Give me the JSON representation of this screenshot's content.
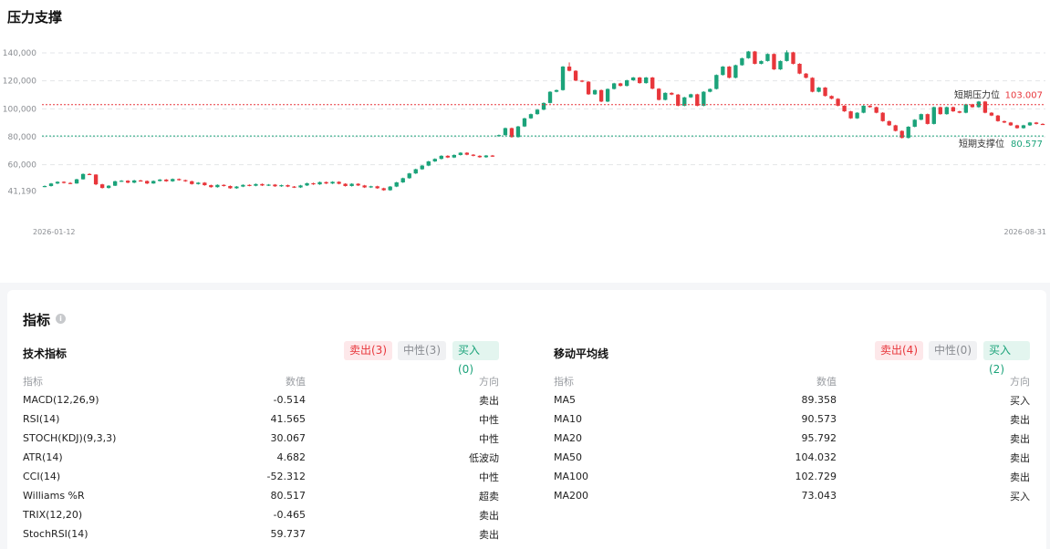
{
  "chart_title": "压力支撑",
  "chart_data": {
    "type": "candlestick",
    "yticks": [
      "140,000",
      "120,000",
      "100,000",
      "80,000",
      "60,000",
      "41,190"
    ],
    "ylim": [
      30000,
      142000
    ],
    "x_start_label": "2026-01-12",
    "x_end_label": "2026-08-31",
    "resistance": {
      "label": "短期压力位",
      "value": 103007,
      "display": "103.007",
      "color": "#e8363b"
    },
    "support": {
      "label": "短期支撑位",
      "value": 80577,
      "display": "80.577",
      "color": "#1ba37a"
    },
    "up_color": "#1ba37a",
    "down_color": "#e8363b",
    "candles": [
      [
        44200,
        44800,
        44000,
        45200
      ],
      [
        44800,
        46600,
        44400,
        47000
      ],
      [
        46600,
        47800,
        46200,
        48200
      ],
      [
        47800,
        47000,
        46600,
        48200
      ],
      [
        47000,
        46600,
        46200,
        47600
      ],
      [
        46600,
        49600,
        46400,
        50000
      ],
      [
        49600,
        53400,
        49400,
        53800
      ],
      [
        53400,
        53000,
        52600,
        54000
      ],
      [
        53000,
        46000,
        45400,
        53200
      ],
      [
        46000,
        43400,
        43000,
        46400
      ],
      [
        43400,
        45000,
        43000,
        45400
      ],
      [
        45000,
        48200,
        44800,
        48600
      ],
      [
        48200,
        48600,
        47800,
        49000
      ],
      [
        48600,
        47200,
        46800,
        49000
      ],
      [
        47200,
        48800,
        46800,
        49200
      ],
      [
        48800,
        48400,
        48000,
        49200
      ],
      [
        48400,
        46600,
        46200,
        48800
      ],
      [
        46600,
        48400,
        46400,
        48800
      ],
      [
        48400,
        49400,
        48000,
        49800
      ],
      [
        49400,
        48200,
        47800,
        49800
      ],
      [
        48200,
        49800,
        47800,
        50200
      ],
      [
        49800,
        49000,
        48600,
        50200
      ],
      [
        49000,
        48200,
        47800,
        49400
      ],
      [
        48200,
        46200,
        45800,
        48600
      ],
      [
        46200,
        47200,
        45800,
        47600
      ],
      [
        47200,
        45400,
        45000,
        47600
      ],
      [
        45400,
        44000,
        43600,
        45800
      ],
      [
        44000,
        45600,
        43600,
        46000
      ],
      [
        45600,
        44800,
        44400,
        46000
      ],
      [
        44800,
        43200,
        42800,
        45200
      ],
      [
        43200,
        44400,
        42800,
        44800
      ],
      [
        44400,
        45600,
        44000,
        46000
      ],
      [
        45600,
        45000,
        44600,
        46000
      ],
      [
        45000,
        46200,
        44600,
        46600
      ],
      [
        46200,
        45200,
        44800,
        46600
      ],
      [
        45200,
        45800,
        44800,
        46200
      ],
      [
        45800,
        44600,
        44200,
        46200
      ],
      [
        44600,
        45400,
        44200,
        45800
      ],
      [
        45400,
        44400,
        44000,
        45800
      ],
      [
        44400,
        43800,
        43400,
        44800
      ],
      [
        43800,
        45200,
        43400,
        45600
      ],
      [
        45200,
        46800,
        44800,
        47200
      ],
      [
        46800,
        46000,
        45600,
        47200
      ],
      [
        46000,
        47600,
        45600,
        48000
      ],
      [
        47600,
        46600,
        46200,
        48000
      ],
      [
        46600,
        47800,
        46200,
        48200
      ],
      [
        47800,
        46400,
        46000,
        48200
      ],
      [
        46400,
        44800,
        44400,
        46800
      ],
      [
        44800,
        46400,
        44400,
        46800
      ],
      [
        46400,
        45200,
        44800,
        46800
      ],
      [
        45200,
        43800,
        43400,
        45600
      ],
      [
        43800,
        44600,
        43400,
        45000
      ],
      [
        44600,
        43200,
        42800,
        45000
      ],
      [
        43200,
        41800,
        41400,
        43600
      ],
      [
        41800,
        44400,
        41400,
        44800
      ],
      [
        44400,
        47400,
        44000,
        47800
      ],
      [
        47400,
        50400,
        47000,
        50800
      ],
      [
        50400,
        53800,
        50000,
        54200
      ],
      [
        53800,
        56800,
        53400,
        57200
      ],
      [
        56800,
        59400,
        56400,
        59800
      ],
      [
        59400,
        62400,
        59000,
        62800
      ],
      [
        62400,
        64200,
        62000,
        64600
      ],
      [
        64200,
        66400,
        63800,
        66800
      ],
      [
        66400,
        65200,
        64800,
        66800
      ],
      [
        65200,
        67000,
        64800,
        67400
      ],
      [
        67000,
        68600,
        66600,
        69000
      ],
      [
        68600,
        67200,
        66800,
        69000
      ],
      [
        67200,
        66400,
        66000,
        67600
      ],
      [
        66400,
        65400,
        65000,
        66800
      ],
      [
        65400,
        66600,
        65000,
        67000
      ],
      [
        66600,
        66000,
        65600,
        67000
      ],
      [
        80800,
        81200,
        80200,
        81600
      ],
      [
        81200,
        86200,
        80800,
        86600
      ],
      [
        86200,
        79800,
        79400,
        86600
      ],
      [
        79800,
        87400,
        79400,
        87800
      ],
      [
        87400,
        93200,
        87000,
        93600
      ],
      [
        93200,
        96200,
        92800,
        96600
      ],
      [
        96200,
        99400,
        95800,
        99800
      ],
      [
        99400,
        104200,
        99000,
        104600
      ],
      [
        104200,
        112200,
        103800,
        112600
      ],
      [
        112200,
        113400,
        111800,
        113800
      ],
      [
        113400,
        130200,
        113000,
        130600
      ],
      [
        130200,
        127200,
        126800,
        133200
      ],
      [
        127200,
        120200,
        119800,
        127600
      ],
      [
        120200,
        119400,
        119000,
        120600
      ],
      [
        119400,
        110400,
        110000,
        119800
      ],
      [
        110400,
        113400,
        110000,
        113800
      ],
      [
        113400,
        105200,
        104800,
        113800
      ],
      [
        105200,
        114200,
        104800,
        114600
      ],
      [
        114200,
        118200,
        113800,
        118600
      ],
      [
        118200,
        116400,
        116000,
        118600
      ],
      [
        116400,
        120400,
        116000,
        120800
      ],
      [
        120400,
        122400,
        120000,
        122800
      ],
      [
        122400,
        118400,
        118000,
        122800
      ],
      [
        118400,
        122400,
        118000,
        122800
      ],
      [
        122400,
        114400,
        114000,
        122800
      ],
      [
        114400,
        106400,
        106000,
        114800
      ],
      [
        106400,
        111400,
        106000,
        111800
      ],
      [
        111400,
        110200,
        109800,
        111800
      ],
      [
        110200,
        102200,
        101800,
        110600
      ],
      [
        102200,
        108200,
        101800,
        108600
      ],
      [
        108200,
        110400,
        107800,
        110800
      ],
      [
        110400,
        102200,
        101800,
        110800
      ],
      [
        102200,
        112200,
        101800,
        112600
      ],
      [
        112200,
        114200,
        111800,
        114600
      ],
      [
        114200,
        124200,
        113800,
        124600
      ],
      [
        124200,
        130200,
        123800,
        130600
      ],
      [
        130200,
        122200,
        121800,
        130600
      ],
      [
        122200,
        131200,
        121800,
        131600
      ],
      [
        131200,
        136200,
        130800,
        136600
      ],
      [
        136200,
        141000,
        135800,
        141400
      ],
      [
        141000,
        132200,
        131800,
        141400
      ],
      [
        132200,
        134200,
        131800,
        134600
      ],
      [
        134200,
        139200,
        133800,
        139600
      ],
      [
        139200,
        128200,
        127800,
        139600
      ],
      [
        128200,
        134200,
        127800,
        134600
      ],
      [
        134200,
        140400,
        133800,
        141800
      ],
      [
        140400,
        132200,
        131800,
        140800
      ],
      [
        132200,
        125200,
        124800,
        132600
      ],
      [
        125200,
        122200,
        121800,
        125600
      ],
      [
        122200,
        112200,
        111800,
        122600
      ],
      [
        112200,
        115200,
        111800,
        115600
      ],
      [
        115200,
        109200,
        108800,
        115600
      ],
      [
        109200,
        107200,
        106800,
        109600
      ],
      [
        107200,
        102200,
        101800,
        107600
      ],
      [
        102200,
        98200,
        97800,
        102600
      ],
      [
        98200,
        93200,
        92800,
        98600
      ],
      [
        93200,
        97200,
        92800,
        97600
      ],
      [
        97200,
        102200,
        96800,
        102600
      ],
      [
        102200,
        101200,
        100800,
        102600
      ],
      [
        101200,
        97200,
        96800,
        101600
      ],
      [
        97200,
        91200,
        90800,
        97600
      ],
      [
        91200,
        88200,
        87800,
        91600
      ],
      [
        88200,
        84200,
        83800,
        88600
      ],
      [
        84200,
        79200,
        78800,
        84600
      ],
      [
        79200,
        87200,
        78800,
        87600
      ],
      [
        87200,
        92200,
        86800,
        92600
      ],
      [
        92200,
        96200,
        91800,
        96600
      ],
      [
        96200,
        89200,
        88800,
        96600
      ],
      [
        89200,
        101200,
        88800,
        101600
      ],
      [
        101200,
        96200,
        95800,
        101600
      ],
      [
        96200,
        101200,
        95800,
        101600
      ],
      [
        101200,
        98200,
        97800,
        101600
      ],
      [
        98200,
        97200,
        96800,
        98600
      ],
      [
        97200,
        103200,
        96800,
        103600
      ],
      [
        103200,
        101200,
        100800,
        103600
      ],
      [
        101200,
        105200,
        100800,
        105600
      ],
      [
        105200,
        97200,
        96800,
        105600
      ],
      [
        97200,
        95200,
        94800,
        97600
      ],
      [
        95200,
        91200,
        90800,
        95600
      ],
      [
        91200,
        90200,
        89800,
        91600
      ],
      [
        90200,
        88200,
        87800,
        90600
      ],
      [
        88200,
        86200,
        85800,
        88600
      ],
      [
        86200,
        88200,
        85800,
        88600
      ],
      [
        88200,
        90200,
        87800,
        90600
      ],
      [
        90200,
        89200,
        88800,
        90600
      ],
      [
        89200,
        88900,
        88500,
        89600
      ]
    ]
  },
  "card": {
    "title": "指标",
    "info_icon": "info-icon"
  },
  "tech": {
    "title": "技术指标",
    "sell": "卖出(3)",
    "neutral": "中性(3)",
    "buy": "买入(0)",
    "headers": {
      "name": "指标",
      "value": "数值",
      "dir": "方向"
    },
    "rows": [
      {
        "name": "MACD(12,26,9)",
        "value": "-0.514",
        "dir": "卖出",
        "type": "sell"
      },
      {
        "name": "RSI(14)",
        "value": "41.565",
        "dir": "中性",
        "type": "neutral"
      },
      {
        "name": "STOCH(KDJ)(9,3,3)",
        "value": "30.067",
        "dir": "中性",
        "type": "neutral"
      },
      {
        "name": "ATR(14)",
        "value": "4.682",
        "dir": "低波动",
        "type": "neutral"
      },
      {
        "name": "CCI(14)",
        "value": "-52.312",
        "dir": "中性",
        "type": "neutral"
      },
      {
        "name": "Williams %R",
        "value": "80.517",
        "dir": "超卖",
        "type": "neutral"
      },
      {
        "name": "TRIX(12,20)",
        "value": "-0.465",
        "dir": "卖出",
        "type": "sell"
      },
      {
        "name": "StochRSI(14)",
        "value": "59.737",
        "dir": "卖出",
        "type": "sell"
      }
    ]
  },
  "ma": {
    "title": "移动平均线",
    "sell": "卖出(4)",
    "neutral": "中性(0)",
    "buy": "买入(2)",
    "headers": {
      "name": "指标",
      "value": "数值",
      "dir": "方向"
    },
    "rows": [
      {
        "name": "MA5",
        "value": "89.358",
        "dir": "买入",
        "type": "buy"
      },
      {
        "name": "MA10",
        "value": "90.573",
        "dir": "卖出",
        "type": "sell"
      },
      {
        "name": "MA20",
        "value": "95.792",
        "dir": "卖出",
        "type": "sell"
      },
      {
        "name": "MA50",
        "value": "104.032",
        "dir": "卖出",
        "type": "sell"
      },
      {
        "name": "MA100",
        "value": "102.729",
        "dir": "卖出",
        "type": "sell"
      },
      {
        "name": "MA200",
        "value": "73.043",
        "dir": "买入",
        "type": "buy"
      }
    ]
  }
}
